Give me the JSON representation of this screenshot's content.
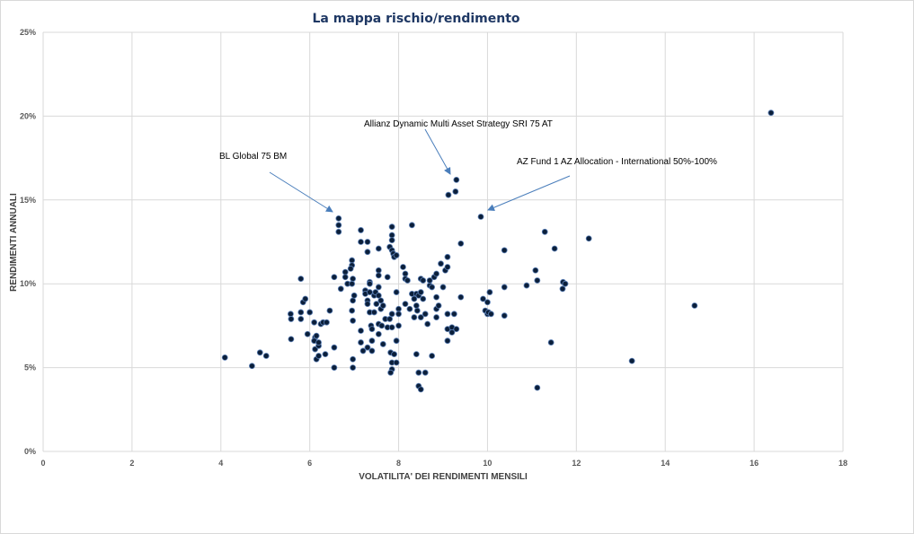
{
  "chart_data": {
    "type": "scatter",
    "title": "La mappa rischio/rendimento",
    "xlabel": "VOLATILITA' DEI RENDIMENTI MENSILI",
    "ylabel": "RENDIMENTI ANNUALI",
    "xlim": [
      0,
      18
    ],
    "ylim": [
      0,
      25
    ],
    "xticks": [
      "0",
      "2",
      "4",
      "6",
      "8",
      "10",
      "12",
      "14",
      "16",
      "18"
    ],
    "yticks": [
      "0%",
      "5%",
      "10%",
      "15%",
      "20%",
      "25%"
    ],
    "grid": true,
    "marker_color": "#0b1f3a",
    "annotations": [
      {
        "text": "BL Global 75 BM"
      },
      {
        "text": "Allianz Dynamic Multi Asset Strategy SRI 75 AT"
      },
      {
        "text": "AZ Fund 1 AZ Allocation - International 50%-100%"
      }
    ],
    "points": [
      [
        4.09,
        5.6
      ],
      [
        4.7,
        5.1
      ],
      [
        4.88,
        5.9
      ],
      [
        5.02,
        5.7
      ],
      [
        5.57,
        8.2
      ],
      [
        5.58,
        7.9
      ],
      [
        5.58,
        6.7
      ],
      [
        5.8,
        7.9
      ],
      [
        5.8,
        8.3
      ],
      [
        5.85,
        8.9
      ],
      [
        5.8,
        10.3
      ],
      [
        5.9,
        9.1
      ],
      [
        5.95,
        7.0
      ],
      [
        6.0,
        8.3
      ],
      [
        6.1,
        7.7
      ],
      [
        6.12,
        6.8
      ],
      [
        6.1,
        6.6
      ],
      [
        6.15,
        6.9
      ],
      [
        6.12,
        6.1
      ],
      [
        6.15,
        5.5
      ],
      [
        6.2,
        5.7
      ],
      [
        6.2,
        6.3
      ],
      [
        6.2,
        6.5
      ],
      [
        6.25,
        7.6
      ],
      [
        6.3,
        7.7
      ],
      [
        6.38,
        7.7
      ],
      [
        6.35,
        5.8
      ],
      [
        6.45,
        8.4
      ],
      [
        6.55,
        10.4
      ],
      [
        6.55,
        6.2
      ],
      [
        6.55,
        5.0
      ],
      [
        6.65,
        13.9
      ],
      [
        6.65,
        13.5
      ],
      [
        6.65,
        13.1
      ],
      [
        6.7,
        9.7
      ],
      [
        6.8,
        10.7
      ],
      [
        6.8,
        10.4
      ],
      [
        6.85,
        10.0
      ],
      [
        6.95,
        11.4
      ],
      [
        6.95,
        11.1
      ],
      [
        6.92,
        10.9
      ],
      [
        6.97,
        10.3
      ],
      [
        6.95,
        10.0
      ],
      [
        6.97,
        9.0
      ],
      [
        7.0,
        9.3
      ],
      [
        6.95,
        8.4
      ],
      [
        6.97,
        7.8
      ],
      [
        6.97,
        5.5
      ],
      [
        6.97,
        5.0
      ],
      [
        7.15,
        13.2
      ],
      [
        7.15,
        12.5
      ],
      [
        7.15,
        7.2
      ],
      [
        7.15,
        6.5
      ],
      [
        7.2,
        6.0
      ],
      [
        7.25,
        9.6
      ],
      [
        7.25,
        9.4
      ],
      [
        7.3,
        12.5
      ],
      [
        7.3,
        11.9
      ],
      [
        7.3,
        9.0
      ],
      [
        7.3,
        8.8
      ],
      [
        7.3,
        6.2
      ],
      [
        7.35,
        10.1
      ],
      [
        7.35,
        10.0
      ],
      [
        7.35,
        9.5
      ],
      [
        7.35,
        8.3
      ],
      [
        7.38,
        7.5
      ],
      [
        7.4,
        7.3
      ],
      [
        7.4,
        6.6
      ],
      [
        7.4,
        6.0
      ],
      [
        7.45,
        9.3
      ],
      [
        7.48,
        9.5
      ],
      [
        7.45,
        8.3
      ],
      [
        7.5,
        8.8
      ],
      [
        7.55,
        12.1
      ],
      [
        7.55,
        10.8
      ],
      [
        7.55,
        10.5
      ],
      [
        7.55,
        9.8
      ],
      [
        7.55,
        9.3
      ],
      [
        7.55,
        7.6
      ],
      [
        7.55,
        7.0
      ],
      [
        7.6,
        9.0
      ],
      [
        7.6,
        8.5
      ],
      [
        7.62,
        7.5
      ],
      [
        7.65,
        8.7
      ],
      [
        7.65,
        6.4
      ],
      [
        7.7,
        7.9
      ],
      [
        7.75,
        10.4
      ],
      [
        7.75,
        7.4
      ],
      [
        7.8,
        12.2
      ],
      [
        7.8,
        7.9
      ],
      [
        7.82,
        5.9
      ],
      [
        7.85,
        13.4
      ],
      [
        7.85,
        12.9
      ],
      [
        7.85,
        12.6
      ],
      [
        7.85,
        12.0
      ],
      [
        7.88,
        11.8
      ],
      [
        7.85,
        8.2
      ],
      [
        7.85,
        7.4
      ],
      [
        7.85,
        5.3
      ],
      [
        7.85,
        4.9
      ],
      [
        7.82,
        4.7
      ],
      [
        7.9,
        11.6
      ],
      [
        7.9,
        5.8
      ],
      [
        7.95,
        11.7
      ],
      [
        7.95,
        9.5
      ],
      [
        7.95,
        6.6
      ],
      [
        7.95,
        5.3
      ],
      [
        8.0,
        8.5
      ],
      [
        8.0,
        8.2
      ],
      [
        8.0,
        7.5
      ],
      [
        8.1,
        11.0
      ],
      [
        8.15,
        10.6
      ],
      [
        8.15,
        10.3
      ],
      [
        8.2,
        10.2
      ],
      [
        8.15,
        8.8
      ],
      [
        8.25,
        8.5
      ],
      [
        8.3,
        13.5
      ],
      [
        8.3,
        9.4
      ],
      [
        8.35,
        9.1
      ],
      [
        8.35,
        8.0
      ],
      [
        8.4,
        9.4
      ],
      [
        8.4,
        8.7
      ],
      [
        8.42,
        8.4
      ],
      [
        8.4,
        5.8
      ],
      [
        8.45,
        4.7
      ],
      [
        8.45,
        3.9
      ],
      [
        8.5,
        3.7
      ],
      [
        8.45,
        9.3
      ],
      [
        8.5,
        9.5
      ],
      [
        8.5,
        8.0
      ],
      [
        8.5,
        10.3
      ],
      [
        8.55,
        10.2
      ],
      [
        8.55,
        9.1
      ],
      [
        8.6,
        8.2
      ],
      [
        8.6,
        4.7
      ],
      [
        8.65,
        7.6
      ],
      [
        8.7,
        9.9
      ],
      [
        8.7,
        10.2
      ],
      [
        8.75,
        9.8
      ],
      [
        8.75,
        5.7
      ],
      [
        8.8,
        10.4
      ],
      [
        8.85,
        10.6
      ],
      [
        8.85,
        9.2
      ],
      [
        8.85,
        8.5
      ],
      [
        8.85,
        8.0
      ],
      [
        8.9,
        8.7
      ],
      [
        8.95,
        11.2
      ],
      [
        9.05,
        10.8
      ],
      [
        9.1,
        11.0
      ],
      [
        9.1,
        11.6
      ],
      [
        9.0,
        9.8
      ],
      [
        9.1,
        8.2
      ],
      [
        9.1,
        7.3
      ],
      [
        9.1,
        6.6
      ],
      [
        9.2,
        7.4
      ],
      [
        9.2,
        7.1
      ],
      [
        9.25,
        8.2
      ],
      [
        9.3,
        7.3
      ],
      [
        9.4,
        12.4
      ],
      [
        9.4,
        9.2
      ],
      [
        9.12,
        15.3
      ],
      [
        9.28,
        15.5
      ],
      [
        9.3,
        16.2
      ],
      [
        9.85,
        14.0
      ],
      [
        9.9,
        9.1
      ],
      [
        10.0,
        8.9
      ],
      [
        9.95,
        8.4
      ],
      [
        10.0,
        8.2
      ],
      [
        10.02,
        8.3
      ],
      [
        10.08,
        8.2
      ],
      [
        10.05,
        9.5
      ],
      [
        10.38,
        12.0
      ],
      [
        10.38,
        9.8
      ],
      [
        10.38,
        8.1
      ],
      [
        10.88,
        9.9
      ],
      [
        11.08,
        10.8
      ],
      [
        11.12,
        10.2
      ],
      [
        11.12,
        3.8
      ],
      [
        11.29,
        13.1
      ],
      [
        11.43,
        6.5
      ],
      [
        11.51,
        12.1
      ],
      [
        11.69,
        9.7
      ],
      [
        11.7,
        10.1
      ],
      [
        11.75,
        10.0
      ],
      [
        12.28,
        12.7
      ],
      [
        13.25,
        5.4
      ],
      [
        14.66,
        8.7
      ],
      [
        16.38,
        20.2
      ]
    ]
  }
}
